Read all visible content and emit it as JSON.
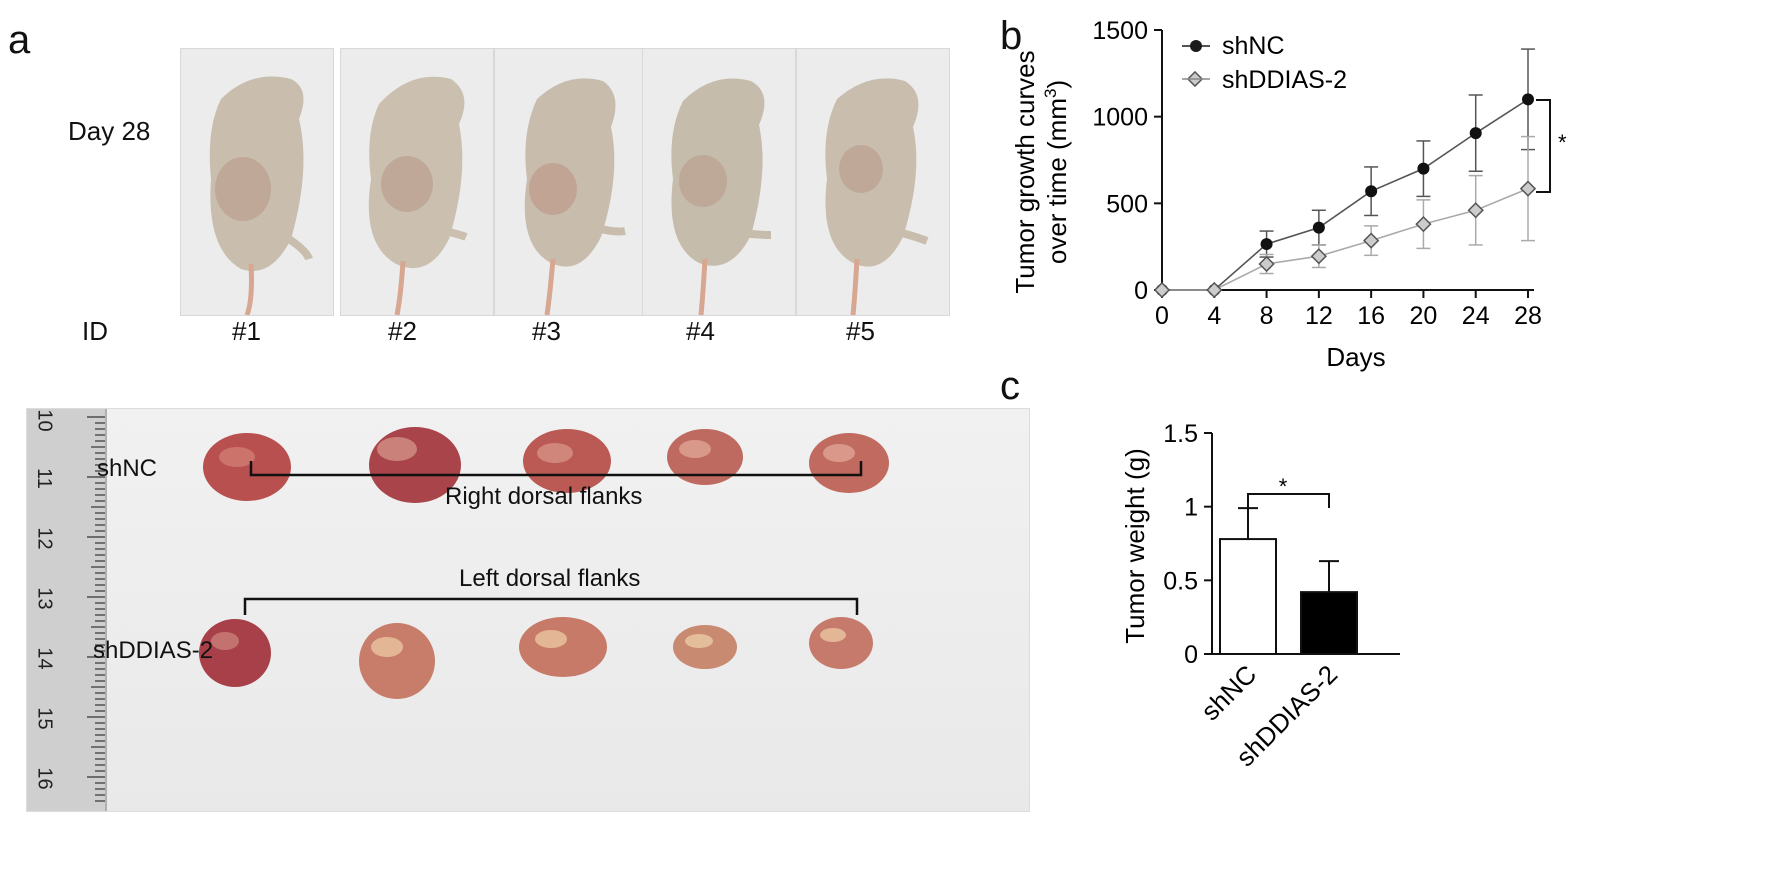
{
  "panel_a": {
    "letter": "a",
    "day_label": "Day 28",
    "id_label": "ID",
    "ids": [
      "#1",
      "#2",
      "#3",
      "#4",
      "#5"
    ],
    "ruler_numbers": [
      "10",
      "11",
      "12",
      "13",
      "14",
      "15",
      "16"
    ],
    "group_top": "shNC",
    "group_bottom": "shDDIAS-2",
    "bracket_top": "Right dorsal flanks",
    "bracket_bottom": "Left dorsal flanks"
  },
  "panel_b": {
    "letter": "b",
    "significance": "*"
  },
  "panel_c": {
    "letter": "c",
    "significance": "*"
  },
  "colors": {
    "shNC": "#1a1a1a",
    "shDDIAS2": "#8a8a8a",
    "tumor": "#b8504f",
    "mouse": "#c9beae"
  },
  "chart_data": [
    {
      "type": "line",
      "title": "",
      "xlabel": "Days",
      "ylabel": "Tumor growth curves over time (mm³)",
      "ylabel_line1": "Tumor growth curves",
      "ylabel_line2": "over time (mm",
      "ylabel_sup": "3",
      "ylabel_close": ")",
      "x": [
        0,
        4,
        8,
        12,
        16,
        20,
        24,
        28
      ],
      "xlim": [
        0,
        28
      ],
      "ylim": [
        0,
        1500
      ],
      "yticks": [
        0,
        500,
        1000,
        1500
      ],
      "legend": "top-left",
      "series": [
        {
          "name": "shNC",
          "values": [
            0,
            0,
            265,
            360,
            570,
            700,
            905,
            1100
          ],
          "error": [
            0,
            0,
            75,
            100,
            140,
            160,
            220,
            290
          ]
        },
        {
          "name": "shDDIAS-2",
          "values": [
            0,
            0,
            150,
            195,
            285,
            380,
            460,
            585
          ],
          "error": [
            0,
            0,
            55,
            65,
            85,
            140,
            200,
            300
          ]
        }
      ]
    },
    {
      "type": "bar",
      "title": "",
      "xlabel": "",
      "ylabel": "Tumor weight (g)",
      "categories": [
        "shNC",
        "shDDIAS-2"
      ],
      "values": [
        0.78,
        0.42
      ],
      "error": [
        0.21,
        0.21
      ],
      "ylim": [
        0,
        1.5
      ],
      "yticks": [
        "0",
        "0.5",
        "1",
        "1.5"
      ],
      "bar_fills": [
        "#ffffff",
        "#000000"
      ]
    }
  ]
}
